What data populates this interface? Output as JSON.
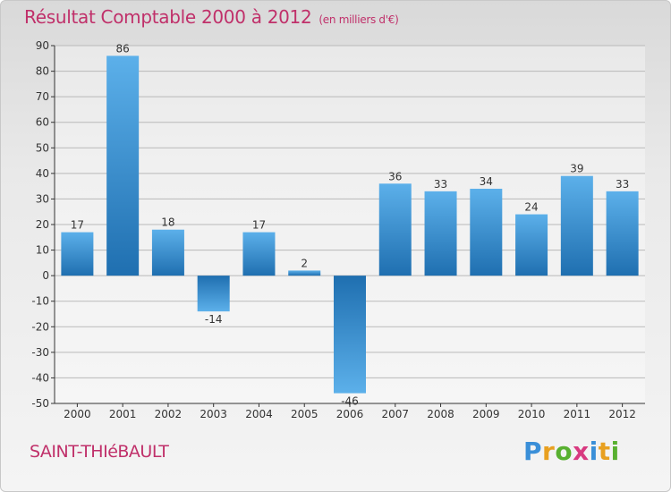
{
  "chart_data": {
    "type": "bar",
    "title": "Résultat Comptable 2000 à 2012",
    "subtitle": "(en milliers d'€)",
    "categories": [
      "2000",
      "2001",
      "2002",
      "2003",
      "2004",
      "2005",
      "2006",
      "2007",
      "2008",
      "2009",
      "2010",
      "2011",
      "2012"
    ],
    "values": [
      17,
      86,
      18,
      -14,
      17,
      2,
      -46,
      36,
      33,
      34,
      24,
      39,
      33
    ],
    "ylim": [
      -50,
      90
    ],
    "yticks": [
      -50,
      -40,
      -30,
      -20,
      -10,
      0,
      10,
      20,
      30,
      40,
      50,
      60,
      70,
      80,
      90
    ],
    "grid": true,
    "xlabel": "",
    "ylabel": ""
  },
  "colors": {
    "title": "#c0306a",
    "bar_light": "#5cb0ea",
    "bar_dark": "#1f6fb0"
  },
  "footer": {
    "commune": "SAINT-THIéBAULT",
    "brand_letters": [
      "P",
      "r",
      "o",
      "x",
      "i",
      "t",
      "i"
    ],
    "brand_colors": [
      "#3a8fd8",
      "#e8a020",
      "#58b030",
      "#d83a80",
      "#3a8fd8",
      "#e8a020",
      "#58b030"
    ]
  }
}
